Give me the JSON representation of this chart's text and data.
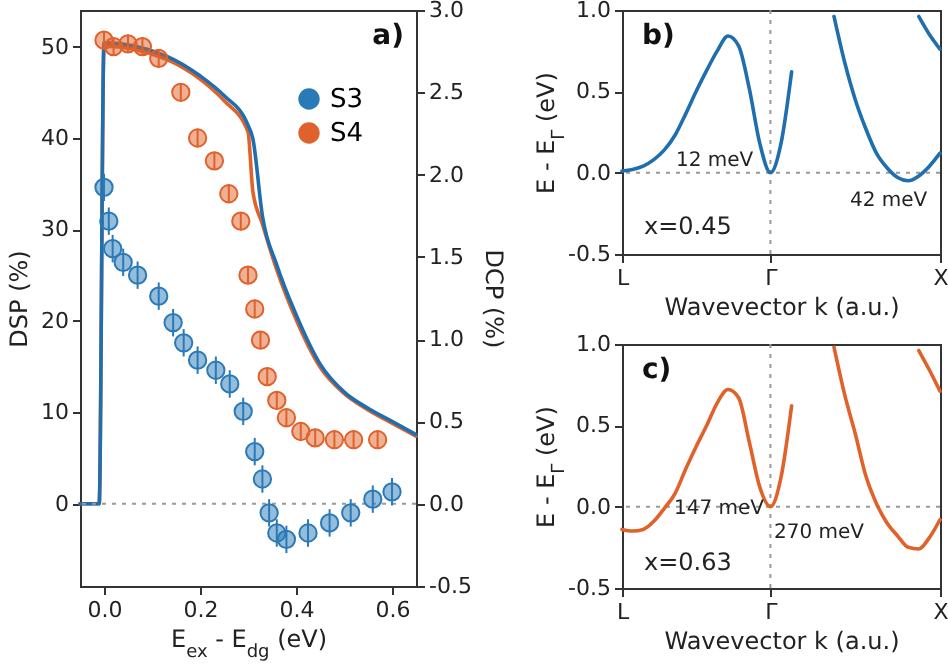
{
  "chart_data": [
    {
      "type": "scatter",
      "title": "a)",
      "xlabel": "E$_{ex}$ - E$_{dg}$ (eV)",
      "ylabel": "DSP (%)",
      "y2label": "DCP (%)",
      "xlim": [
        -0.05,
        0.65
      ],
      "xticks": [
        {
          "value": 0,
          "label": "0.0"
        },
        {
          "value": 0.2,
          "label": "0.2"
        },
        {
          "value": 0.4,
          "label": "0.4"
        },
        {
          "value": 0.6,
          "label": "0.6"
        }
      ],
      "ylim": [
        -9,
        54
      ],
      "yticks": [
        0,
        10,
        20,
        30,
        40,
        50
      ],
      "y2lim": [
        -0.5,
        3.0
      ],
      "y2ticks": [
        {
          "value": -0.5,
          "label": "-0.5"
        },
        {
          "value": 0,
          "label": "0.0"
        },
        {
          "value": 0.5,
          "label": "0.5"
        },
        {
          "value": 1,
          "label": "1.0"
        },
        {
          "value": 1.5,
          "label": "1.5"
        },
        {
          "value": 2,
          "label": "2.0"
        },
        {
          "value": 2.5,
          "label": "2.5"
        },
        {
          "value": 3,
          "label": "3.0"
        }
      ],
      "legend": "top right",
      "marker": "circle",
      "ref_lines": [
        {
          "axis": "y",
          "value": 0,
          "color": "#999999",
          "line_style": "dotted"
        }
      ],
      "series": [
        {
          "type": "line",
          "axis": "y2",
          "marker": "none",
          "color": "#e0622a",
          "x": [
            -0.05,
            -0.01,
            0.0,
            0.13,
            0.2,
            0.25,
            0.3,
            0.31,
            0.33,
            0.36,
            0.4,
            0.45,
            0.5,
            0.55,
            0.6,
            0.65
          ],
          "values": [
            0,
            0,
            2.78,
            2.7,
            2.58,
            2.45,
            2.26,
            1.9,
            1.7,
            1.42,
            1.12,
            0.83,
            0.67,
            0.57,
            0.49,
            0.41
          ]
        },
        {
          "type": "line",
          "axis": "y2",
          "marker": "none",
          "color": "#1f6fae",
          "x": [
            -0.05,
            -0.01,
            0.0,
            0.13,
            0.2,
            0.25,
            0.3,
            0.31,
            0.33,
            0.36,
            0.4,
            0.45,
            0.5,
            0.55,
            0.6,
            0.65
          ],
          "values": [
            0,
            0,
            2.8,
            2.72,
            2.6,
            2.48,
            2.3,
            2.22,
            1.75,
            1.45,
            1.15,
            0.85,
            0.68,
            0.58,
            0.5,
            0.42
          ]
        },
        {
          "name": "S3",
          "color": "#2a7ab8",
          "x": [
            0,
            0.01,
            0.018,
            0.04,
            0.07,
            0.114,
            0.144,
            0.166,
            0.195,
            0.233,
            0.262,
            0.29,
            0.314,
            0.33,
            0.344,
            0.36,
            0.38,
            0.425,
            0.47,
            0.514,
            0.56,
            0.6
          ],
          "values": [
            34.6,
            30.9,
            27.9,
            26.4,
            25,
            22.7,
            19.8,
            17.6,
            15.7,
            14.6,
            13.1,
            10.1,
            5.7,
            2.7,
            -1,
            -3.2,
            -3.9,
            -3.2,
            -2.1,
            -1,
            0.5,
            1.3
          ],
          "errors": [
            1.5,
            1.5,
            1.5,
            1.5,
            1.5,
            1.5,
            1.5,
            1.5,
            1.5,
            1.5,
            1.5,
            1.5,
            1.5,
            1.5,
            1.5,
            1.5,
            1.5,
            1.5,
            1.5,
            1.5,
            1.5,
            1.5
          ]
        },
        {
          "name": "S4",
          "color": "#e0622a",
          "x": [
            0,
            0.02,
            0.05,
            0.08,
            0.114,
            0.16,
            0.195,
            0.23,
            0.26,
            0.285,
            0.3,
            0.314,
            0.326,
            0.34,
            0.36,
            0.38,
            0.41,
            0.44,
            0.48,
            0.52,
            0.57
          ],
          "values": [
            50.7,
            50,
            50.3,
            50,
            48.7,
            45,
            40,
            37.5,
            33.9,
            30.9,
            25,
            21.3,
            17.9,
            13.9,
            11.3,
            9.4,
            7.9,
            7.2,
            7,
            7,
            7
          ],
          "errors": [
            1,
            1,
            1,
            1,
            1,
            1,
            1,
            1,
            1,
            1,
            1,
            1,
            1,
            1,
            1,
            1,
            1,
            1,
            1,
            1,
            1
          ]
        }
      ]
    },
    {
      "type": "line",
      "title": "b)",
      "xlabel": "Wavevector k (a.u.)",
      "ylabel": "E - E$_{Γ}$ (eV)",
      "categories": [
        "L",
        null,
        null,
        null,
        null,
        null,
        null,
        null,
        null,
        null,
        null,
        null,
        null,
        null,
        "Γ",
        null,
        null,
        null,
        null,
        null,
        null,
        null,
        null,
        null,
        null,
        null,
        null,
        null,
        null,
        null,
        "X"
      ],
      "ylim": [
        -0.5,
        1.0
      ],
      "yticks": [
        {
          "value": -0.5,
          "label": "-0.5"
        },
        {
          "value": 0,
          "label": "0.0"
        },
        {
          "value": 0.5,
          "label": "0.5"
        },
        {
          "value": 1,
          "label": "1.0"
        }
      ],
      "marker": "none",
      "ref_lines": [
        {
          "axis": "x",
          "value": "Γ",
          "color": "#999999",
          "line_style": "dotted"
        },
        {
          "axis": "y",
          "value": 0,
          "color": "#999999",
          "line_style": "dotted"
        }
      ],
      "annotations": [
        "12 meV",
        "42 meV",
        "x=0.45"
      ],
      "series": [
        {
          "color": "#1f6fae",
          "values": [
            0.01,
            0.02,
            0.04,
            0.08,
            0.14,
            0.23,
            0.36,
            0.5,
            0.63,
            0.75,
            0.84,
            0.78,
            0.52,
            0.18,
            0.0,
            0.18,
            0.62,
            null,
            null,
            null,
            0.96,
            0.68,
            0.45,
            0.27,
            0.12,
            0.03,
            -0.03,
            -0.05,
            -0.02,
            0.04,
            0.12
          ]
        },
        {
          "color": "#1f6fae",
          "values": [
            null,
            null,
            null,
            null,
            null,
            null,
            null,
            null,
            null,
            null,
            null,
            null,
            null,
            null,
            null,
            null,
            null,
            null,
            null,
            null,
            null,
            null,
            null,
            null,
            null,
            null,
            null,
            null,
            0.96,
            0.85,
            0.76
          ]
        }
      ]
    },
    {
      "type": "line",
      "title": "c)",
      "xlabel": "Wavevector k (a.u.)",
      "ylabel": "E - E$_{Γ}$ (eV)",
      "categories": [
        "L",
        null,
        null,
        null,
        null,
        null,
        null,
        null,
        null,
        null,
        null,
        null,
        null,
        null,
        "Γ",
        null,
        null,
        null,
        null,
        null,
        null,
        null,
        null,
        null,
        null,
        null,
        null,
        null,
        null,
        null,
        "X"
      ],
      "ylim": [
        -0.5,
        1.0
      ],
      "yticks": [
        {
          "value": -0.5,
          "label": "-0.5"
        },
        {
          "value": 0,
          "label": "0.0"
        },
        {
          "value": 0.5,
          "label": "0.5"
        },
        {
          "value": 1,
          "label": "1.0"
        }
      ],
      "marker": "none",
      "ref_lines": [
        {
          "axis": "x",
          "value": "Γ",
          "color": "#999999",
          "line_style": "dotted"
        },
        {
          "axis": "y",
          "value": 0,
          "color": "#999999",
          "line_style": "dotted"
        }
      ],
      "annotations": [
        "147 meV",
        "270 meV",
        "x=0.63"
      ],
      "series": [
        {
          "color": "#e0622a",
          "values": [
            -0.14,
            -0.15,
            -0.14,
            -0.09,
            -0.01,
            0.08,
            0.23,
            0.37,
            0.5,
            0.64,
            0.72,
            0.67,
            0.4,
            0.12,
            0.0,
            0.18,
            0.62,
            null,
            null,
            null,
            0.98,
            0.69,
            0.45,
            0.19,
            0.02,
            -0.1,
            -0.18,
            -0.25,
            -0.26,
            -0.19,
            -0.08
          ]
        },
        {
          "color": "#e0622a",
          "values": [
            null,
            null,
            null,
            null,
            null,
            null,
            null,
            null,
            null,
            null,
            null,
            null,
            null,
            null,
            null,
            null,
            null,
            null,
            null,
            null,
            null,
            null,
            null,
            null,
            null,
            null,
            null,
            null,
            0.96,
            0.84,
            0.71
          ]
        }
      ]
    }
  ]
}
